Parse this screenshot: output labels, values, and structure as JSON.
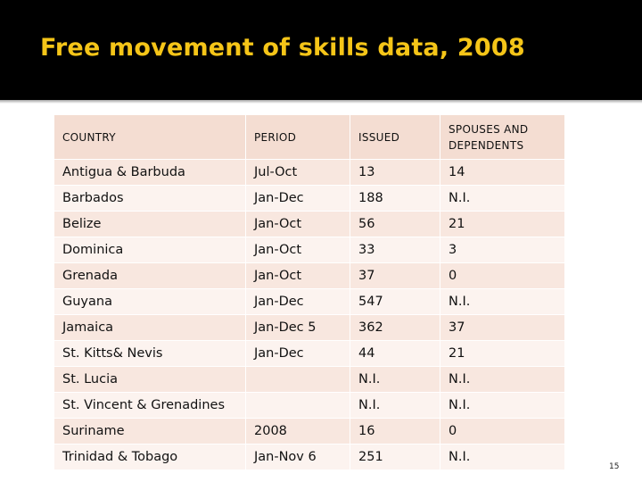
{
  "slide": {
    "title": "Free movement of skills data, 2008",
    "page_number": "15"
  },
  "colors": {
    "title_bar": "#000000",
    "title_text": "#f5c518",
    "header_row": "#f4ddd2",
    "row_odd": "#f8e7df",
    "row_even": "#fcf3ef"
  },
  "table": {
    "headers": [
      "COUNTRY",
      "PERIOD",
      "ISSUED",
      "SPOUSES AND DEPENDENTS"
    ],
    "rows": [
      [
        "Antigua & Barbuda",
        "Jul-Oct",
        "13",
        "14"
      ],
      [
        "Barbados",
        "Jan-Dec",
        "188",
        "N.I."
      ],
      [
        "Belize",
        "Jan-Oct",
        "56",
        "21"
      ],
      [
        "Dominica",
        "Jan-Oct",
        "33",
        "3"
      ],
      [
        "Grenada",
        "Jan-Oct",
        "37",
        "0"
      ],
      [
        "Guyana",
        "Jan-Dec",
        "547",
        "N.I."
      ],
      [
        "Jamaica",
        "Jan-Dec 5",
        "362",
        "37"
      ],
      [
        "St. Kitts& Nevis",
        "Jan-Dec",
        "44",
        "21"
      ],
      [
        "St. Lucia",
        "",
        "N.I.",
        "N.I."
      ],
      [
        "St. Vincent & Grenadines",
        "",
        "N.I.",
        "N.I."
      ],
      [
        "Suriname",
        "2008",
        "16",
        "0"
      ],
      [
        "Trinidad & Tobago",
        "Jan-Nov 6",
        "251",
        "N.I."
      ]
    ]
  }
}
